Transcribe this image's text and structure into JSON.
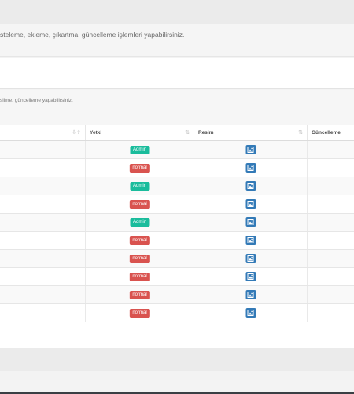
{
  "header": {
    "description": "steleme, ekleme, çıkartma, güncelleme işlemleri yapabilirsiniz."
  },
  "panel": {
    "subdescription": "silme, güncelleme yapabilirsiniz."
  },
  "table": {
    "columns": [
      {
        "label": "",
        "sort": "desc"
      },
      {
        "label": "Yetki",
        "sort": "both"
      },
      {
        "label": "Resim",
        "sort": "both"
      },
      {
        "label": "Güncelleme",
        "sort": "none"
      }
    ],
    "rows": [
      {
        "role": "Admin",
        "role_type": "admin"
      },
      {
        "role": "normal",
        "role_type": "normal"
      },
      {
        "role": "Admin",
        "role_type": "admin"
      },
      {
        "role": "normal",
        "role_type": "normal"
      },
      {
        "role": "Admin",
        "role_type": "admin"
      },
      {
        "role": "normal",
        "role_type": "normal"
      },
      {
        "role": "normal",
        "role_type": "normal"
      },
      {
        "role": "normal",
        "role_type": "normal"
      },
      {
        "role": "normal",
        "role_type": "normal"
      },
      {
        "role": "normal",
        "role_type": "normal"
      }
    ],
    "image_icon": "image-icon"
  },
  "colors": {
    "admin_badge": "#1abc9c",
    "normal_badge": "#d9534f",
    "image_button": "#337ab7"
  }
}
